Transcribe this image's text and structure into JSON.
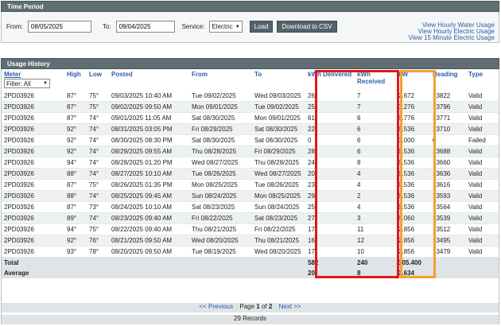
{
  "time_period": {
    "title": "Time Period",
    "from_label": "From:",
    "from_value": "08/05/2025",
    "to_label": "To:",
    "to_value": "09/04/2025",
    "service_label": "Service:",
    "service_value": "Electric",
    "load_label": "Load",
    "download_label": "Download to CSV",
    "links": [
      "View Hourly Water Usage",
      "View Hourly Electric Usage",
      "View 15 Minute Electric Usage"
    ]
  },
  "usage": {
    "title": "Usage History",
    "headers": {
      "meter": "Meter",
      "filter": "Filter: All",
      "high": "High",
      "low": "Low",
      "posted": "Posted",
      "from": "From",
      "to": "To",
      "kwh_delivered": "kWh Delivered",
      "kwh_received": "kWh Received",
      "kw": "kW",
      "reading": "Reading",
      "type": "Type"
    },
    "rows": [
      [
        "2PD03926",
        "87°",
        "75°",
        "09/03/2025 10:40 AM",
        "Tue 09/02/2025",
        "Wed 09/03/2025",
        "26",
        "7",
        "2.672",
        "13822",
        "Valid"
      ],
      [
        "2PD03926",
        "87°",
        "75°",
        "09/02/2025 09:50 AM",
        "Mon 09/01/2025",
        "Tue 09/02/2025",
        "25",
        "7",
        "1.276",
        "13796",
        "Valid"
      ],
      [
        "2PD03926",
        "87°",
        "74°",
        "09/01/2025 11:05 AM",
        "Sat 08/30/2025",
        "Mon 09/01/2025",
        "61",
        "6",
        "6.776",
        "13771",
        "Valid"
      ],
      [
        "2PD03926",
        "92°",
        "74°",
        "08/31/2025 03:05 PM",
        "Fri 08/29/2025",
        "Sat 08/30/2025",
        "22",
        "6",
        "6.536",
        "13710",
        "Valid"
      ],
      [
        "2PD03926",
        "92°",
        "74°",
        "08/30/2025 08:30 PM",
        "Sat 08/30/2025",
        "Sat 08/30/2025",
        "0",
        "6",
        "0.000",
        "0",
        "Failed"
      ],
      [
        "2PD03926",
        "92°",
        "74°",
        "08/29/2025 09:55 AM",
        "Thu 08/28/2025",
        "Fri 08/29/2025",
        "28",
        "6",
        "6.536",
        "13688",
        "Valid"
      ],
      [
        "2PD03926",
        "94°",
        "74°",
        "08/28/2025 01:20 PM",
        "Wed 08/27/2025",
        "Thu 08/28/2025",
        "24",
        "8",
        "6.536",
        "13660",
        "Valid"
      ],
      [
        "2PD03926",
        "88°",
        "74°",
        "08/27/2025 10:10 AM",
        "Tue 08/26/2025",
        "Wed 08/27/2025",
        "20",
        "4",
        "6.536",
        "13636",
        "Valid"
      ],
      [
        "2PD03926",
        "87°",
        "75°",
        "08/26/2025 01:35 PM",
        "Mon 08/25/2025",
        "Tue 08/26/2025",
        "23",
        "4",
        "6.536",
        "13616",
        "Valid"
      ],
      [
        "2PD03926",
        "88°",
        "74°",
        "08/25/2025 09:45 AM",
        "Sun 08/24/2025",
        "Mon 08/25/2025",
        "29",
        "2",
        "6.536",
        "13593",
        "Valid"
      ],
      [
        "2PD03926",
        "87°",
        "73°",
        "08/24/2025 10:10 AM",
        "Sat 08/23/2025",
        "Sun 08/24/2025",
        "25",
        "4",
        "6.536",
        "13564",
        "Valid"
      ],
      [
        "2PD03926",
        "89°",
        "74°",
        "08/23/2025 09:40 AM",
        "Fri 08/22/2025",
        "Sat 08/23/2025",
        "27",
        "3",
        "6.060",
        "13539",
        "Valid"
      ],
      [
        "2PD03926",
        "94°",
        "75°",
        "08/22/2025 09:40 AM",
        "Thu 08/21/2025",
        "Fri 08/22/2025",
        "17",
        "11",
        "2.856",
        "13512",
        "Valid"
      ],
      [
        "2PD03926",
        "92°",
        "76°",
        "08/21/2025 09:50 AM",
        "Wed 08/20/2025",
        "Thu 08/21/2025",
        "16",
        "12",
        "2.856",
        "13495",
        "Valid"
      ],
      [
        "2PD03926",
        "93°",
        "78°",
        "08/20/2025 09:50 AM",
        "Tue 08/19/2025",
        "Wed 08/20/2025",
        "17",
        "10",
        "2.856",
        "13479",
        "Valid"
      ]
    ],
    "total": {
      "label": "Total",
      "delivered": "582",
      "received": "240",
      "kw": "105.400"
    },
    "average": {
      "label": "Average",
      "delivered": "20",
      "received": "8",
      "kw": "3.634"
    },
    "pager": {
      "prev": "<< Previous",
      "page_text": "Page",
      "page": "1",
      "of_text": "of",
      "pages": "2",
      "next": "Next >>"
    },
    "records": "29 Records"
  },
  "colors": {
    "header_bar": "#5f6e72",
    "link": "#2d5ea8",
    "highlight_red": "#e01818",
    "highlight_orange": "#f2a032"
  }
}
